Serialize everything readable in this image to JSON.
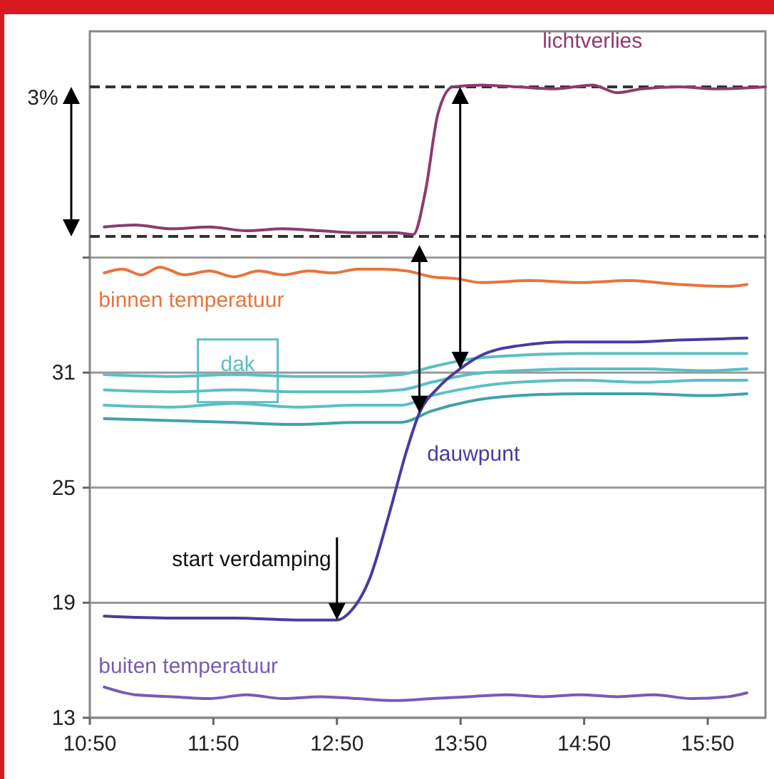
{
  "chart_data": {
    "type": "line",
    "xlim": [
      10.833,
      16.3
    ],
    "ylim": [
      13,
      48.8
    ],
    "xticks": [
      {
        "value": 10.833,
        "label": "10:50"
      },
      {
        "value": 11.833,
        "label": "11:50"
      },
      {
        "value": 12.833,
        "label": "12:50"
      },
      {
        "value": 13.833,
        "label": "13:50"
      },
      {
        "value": 14.833,
        "label": "14:50"
      },
      {
        "value": 15.833,
        "label": "15:50"
      }
    ],
    "yticks": [
      13,
      19,
      25,
      31,
      {
        "value": 37,
        "label": null
      }
    ],
    "grid": "y",
    "marker": "none",
    "line_style": "solid",
    "ref_lines": [
      {
        "axis": "y",
        "value": 38.1,
        "label": null,
        "color": "#333333",
        "line_style": "dashed"
      },
      {
        "axis": "y",
        "value": 45.9,
        "label": null,
        "color": "#333333",
        "line_style": "dashed"
      }
    ],
    "annotations": [
      "3%",
      {
        "text": "start verdamping",
        "x": 12.833,
        "y": 18.1
      }
    ],
    "series": [
      {
        "name": "lichtverlies",
        "color": "#8e3b6e",
        "x": [
          10.95,
          11.2,
          11.5,
          11.8,
          12.1,
          12.4,
          12.7,
          13.0,
          13.3,
          13.45,
          13.55,
          13.65,
          13.77,
          14.0,
          14.3,
          14.6,
          14.9,
          15.1,
          15.3,
          15.6,
          15.9,
          16.3
        ],
        "values": [
          38.6,
          38.7,
          38.5,
          38.6,
          38.4,
          38.5,
          38.4,
          38.3,
          38.3,
          38.2,
          40.5,
          44.5,
          45.9,
          46.0,
          45.9,
          45.8,
          46.0,
          45.6,
          45.8,
          45.9,
          45.8,
          45.9
        ]
      },
      {
        "name": "binnen temperatuur",
        "color": "#e8743b",
        "x": [
          10.95,
          11.1,
          11.25,
          11.4,
          11.6,
          11.8,
          12.0,
          12.2,
          12.4,
          12.6,
          12.8,
          13.0,
          13.2,
          13.4,
          13.6,
          13.8,
          14.0,
          14.4,
          14.8,
          15.2,
          15.6,
          16.0,
          16.15
        ],
        "values": [
          36.2,
          36.4,
          36.1,
          36.5,
          36.1,
          36.3,
          36.0,
          36.3,
          36.1,
          36.3,
          36.2,
          36.4,
          36.4,
          36.3,
          36.0,
          35.9,
          35.7,
          35.8,
          35.7,
          35.8,
          35.6,
          35.5,
          35.6
        ]
      },
      {
        "name": "dak",
        "color": "#5bbfc4",
        "x": [
          10.95,
          11.5,
          12.0,
          12.5,
          13.0,
          13.35,
          13.6,
          13.9,
          14.3,
          14.8,
          15.3,
          15.8,
          16.15
        ],
        "values": [
          30.9,
          30.8,
          30.9,
          30.8,
          30.8,
          30.9,
          31.3,
          31.7,
          31.9,
          32.0,
          32.0,
          32.0,
          32.0
        ]
      },
      {
        "color": "#5bbfc4",
        "x": [
          10.95,
          11.5,
          12.0,
          12.5,
          13.0,
          13.35,
          13.6,
          13.9,
          14.3,
          14.8,
          15.3,
          15.8,
          16.15
        ],
        "values": [
          30.1,
          30.0,
          30.1,
          30.0,
          30.0,
          30.1,
          30.5,
          30.9,
          31.1,
          31.2,
          31.2,
          31.1,
          31.2
        ]
      },
      {
        "color": "#5bbfc4",
        "x": [
          10.95,
          11.5,
          12.0,
          12.5,
          13.0,
          13.35,
          13.6,
          13.9,
          14.3,
          14.8,
          15.3,
          15.8,
          16.15
        ],
        "values": [
          29.3,
          29.2,
          29.4,
          29.2,
          29.3,
          29.3,
          29.8,
          30.2,
          30.5,
          30.6,
          30.5,
          30.6,
          30.6
        ]
      },
      {
        "color": "#3fa3a8",
        "x": [
          10.95,
          11.5,
          12.0,
          12.5,
          13.0,
          13.35,
          13.6,
          13.9,
          14.3,
          14.8,
          15.3,
          15.8,
          16.15
        ],
        "values": [
          28.6,
          28.5,
          28.4,
          28.3,
          28.4,
          28.4,
          29.0,
          29.5,
          29.8,
          29.9,
          29.9,
          29.8,
          29.9
        ]
      },
      {
        "name": "dauwpunt",
        "color": "#4b3a9e",
        "x": [
          10.95,
          11.5,
          12.0,
          12.5,
          12.833,
          12.95,
          13.1,
          13.25,
          13.4,
          13.5,
          13.65,
          13.83,
          14.0,
          14.3,
          14.7,
          15.2,
          15.6,
          16.15
        ],
        "values": [
          18.3,
          18.2,
          18.2,
          18.1,
          18.1,
          18.6,
          20.3,
          23.5,
          27.0,
          28.9,
          30.2,
          31.2,
          31.9,
          32.4,
          32.6,
          32.6,
          32.7,
          32.8
        ]
      },
      {
        "name": "buiten temperatuur",
        "color": "#7a5bb5",
        "x": [
          10.95,
          11.2,
          11.5,
          11.8,
          12.1,
          12.4,
          12.7,
          13.0,
          13.3,
          13.6,
          13.9,
          14.2,
          14.5,
          14.8,
          15.1,
          15.4,
          15.7,
          16.0,
          16.15
        ],
        "values": [
          14.6,
          14.2,
          14.1,
          14.0,
          14.2,
          14.0,
          14.1,
          14.0,
          13.9,
          14.0,
          14.1,
          14.2,
          14.1,
          14.2,
          14.1,
          14.2,
          14.0,
          14.1,
          14.3
        ]
      }
    ]
  }
}
